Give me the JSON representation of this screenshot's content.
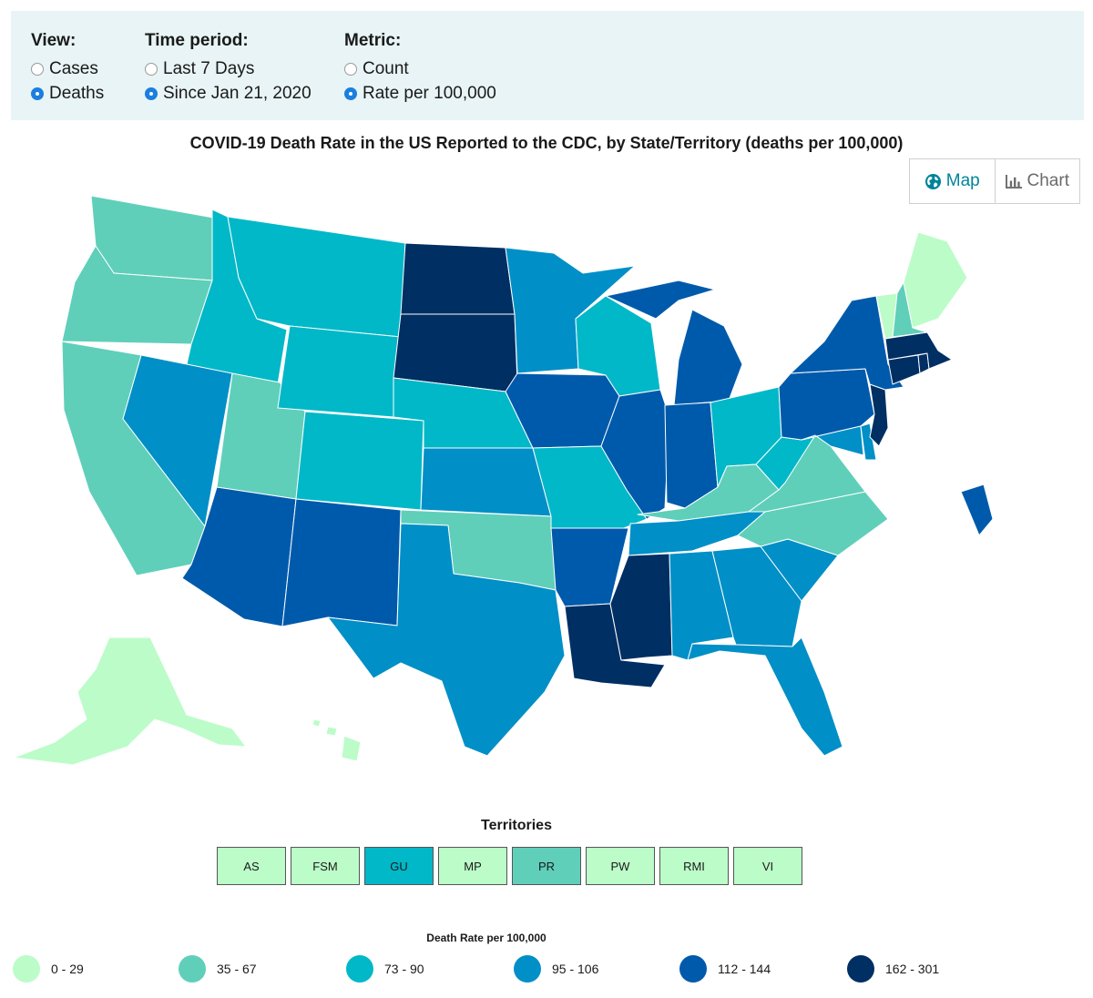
{
  "controls": {
    "view": {
      "label": "View:",
      "options": [
        "Cases",
        "Deaths"
      ],
      "selected": "Deaths"
    },
    "period": {
      "label": "Time period:",
      "options": [
        "Last 7 Days",
        "Since Jan 21, 2020"
      ],
      "selected": "Since Jan 21, 2020"
    },
    "metric": {
      "label": "Metric:",
      "options": [
        "Count",
        "Rate per 100,000"
      ],
      "selected": "Rate per 100,000"
    }
  },
  "title": "COVID-19 Death Rate in the US Reported to the CDC, by State/Territory (deaths per 100,000)",
  "toggle": {
    "map_label": "Map",
    "chart_label": "Chart",
    "active": "Map",
    "map_icon": "globe-icon",
    "chart_icon": "bar-chart-icon"
  },
  "colors": {
    "1": "#bcfcc9",
    "2": "#5fcfba",
    "3": "#00b8c8",
    "4": "#008fc6",
    "5": "#005aab",
    "6": "#002f64"
  },
  "states": {
    "WA": 2,
    "OR": 2,
    "CA": 2,
    "ID": 3,
    "NV": 4,
    "UT": 2,
    "AZ": 5,
    "MT": 3,
    "WY": 3,
    "CO": 3,
    "NM": 5,
    "ND": 6,
    "SD": 6,
    "NE": 3,
    "KS": 4,
    "OK": 2,
    "TX": 4,
    "MN": 4,
    "IA": 5,
    "MO": 3,
    "AR": 5,
    "LA": 6,
    "WI": 3,
    "IL": 5,
    "MI": 5,
    "IN": 5,
    "OH": 3,
    "KY": 2,
    "TN": 4,
    "MS": 6,
    "AL": 4,
    "GA": 4,
    "FL": 4,
    "SC": 4,
    "NC": 2,
    "VA": 2,
    "WV": 3,
    "PA": 5,
    "NY": 5,
    "NJ": 6,
    "DE": 4,
    "MD": 4,
    "CT": 6,
    "RI": 6,
    "MA": 6,
    "VT": 1,
    "NH": 2,
    "ME": 1,
    "AK": 1,
    "HI": 1,
    "DC": 5
  },
  "territories": {
    "title": "Territories",
    "items": [
      {
        "code": "AS",
        "bin": 1
      },
      {
        "code": "FSM",
        "bin": 1
      },
      {
        "code": "GU",
        "bin": 3
      },
      {
        "code": "MP",
        "bin": 1
      },
      {
        "code": "PR",
        "bin": 2
      },
      {
        "code": "PW",
        "bin": 1
      },
      {
        "code": "RMI",
        "bin": 1
      },
      {
        "code": "VI",
        "bin": 1
      }
    ]
  },
  "legend": {
    "title": "Death Rate per 100,000",
    "items": [
      {
        "label": "0 - 29",
        "bin": 1
      },
      {
        "label": "35 - 67",
        "bin": 2
      },
      {
        "label": "73 - 90",
        "bin": 3
      },
      {
        "label": "95 - 106",
        "bin": 4
      },
      {
        "label": "112 - 144",
        "bin": 5
      },
      {
        "label": "162 - 301",
        "bin": 6
      }
    ]
  }
}
